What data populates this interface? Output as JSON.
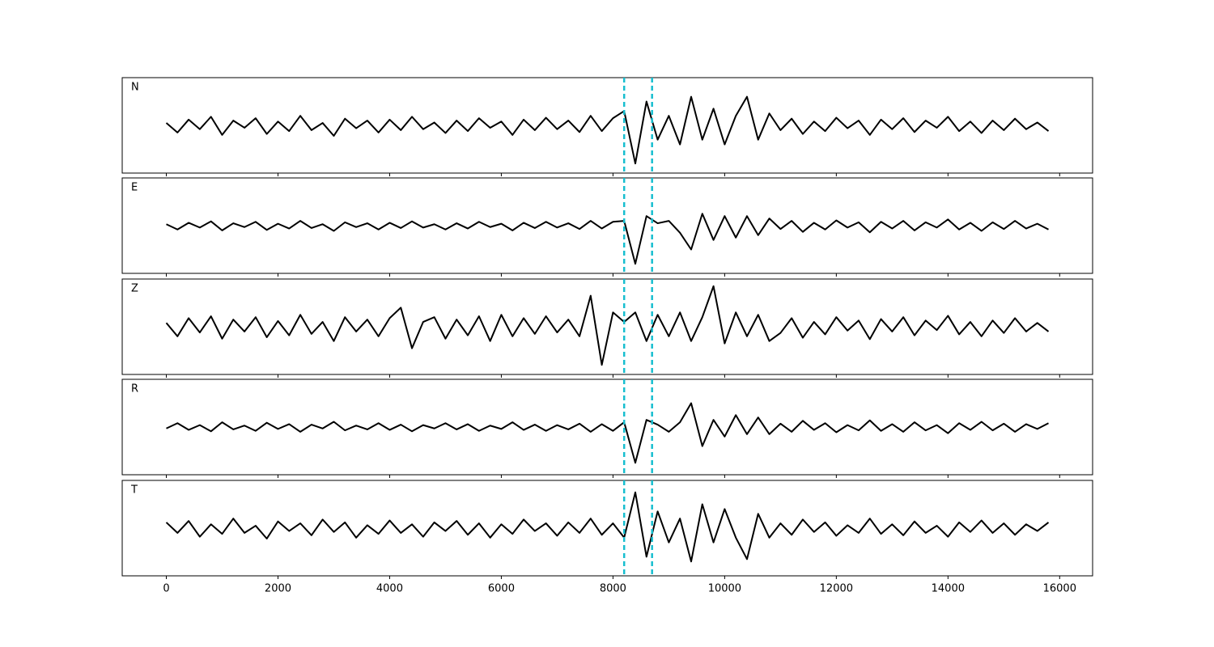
{
  "chart_data": {
    "type": "line",
    "subplots": true,
    "x": [
      0,
      200,
      400,
      600,
      800,
      1000,
      1200,
      1400,
      1600,
      1800,
      2000,
      2200,
      2400,
      2600,
      2800,
      3000,
      3200,
      3400,
      3600,
      3800,
      4000,
      4200,
      4400,
      4600,
      4800,
      5000,
      5200,
      5400,
      5600,
      5800,
      6000,
      6200,
      6400,
      6600,
      6800,
      7000,
      7200,
      7400,
      7600,
      7800,
      8000,
      8200,
      8400,
      8600,
      8800,
      9000,
      9200,
      9400,
      9600,
      9800,
      10000,
      10200,
      10400,
      10600,
      10800,
      11000,
      11200,
      11400,
      11600,
      11800,
      12000,
      12200,
      12400,
      12600,
      12800,
      13000,
      13200,
      13400,
      13600,
      13800,
      14000,
      14200,
      14400,
      14600,
      14800,
      15000,
      15200,
      15400,
      15600,
      15800
    ],
    "xlim": [
      -790,
      16590
    ],
    "xticks": [
      0,
      2000,
      4000,
      6000,
      8000,
      10000,
      12000,
      14000,
      16000
    ],
    "ylim": [
      -1,
      1
    ],
    "vlines": [
      8200,
      8700
    ],
    "vline_color": "#17becf",
    "series": [
      {
        "name": "N",
        "color": "#000000",
        "values": [
          0.05,
          -0.15,
          0.12,
          -0.08,
          0.18,
          -0.2,
          0.1,
          -0.05,
          0.15,
          -0.18,
          0.08,
          -0.12,
          0.2,
          -0.1,
          0.05,
          -0.22,
          0.14,
          -0.06,
          0.1,
          -0.15,
          0.12,
          -0.1,
          0.18,
          -0.08,
          0.06,
          -0.16,
          0.1,
          -0.12,
          0.15,
          -0.05,
          0.08,
          -0.2,
          0.12,
          -0.1,
          0.16,
          -0.08,
          0.1,
          -0.14,
          0.2,
          -0.12,
          0.15,
          0.3,
          -0.8,
          0.5,
          -0.3,
          0.2,
          -0.4,
          0.6,
          -0.3,
          0.35,
          -0.4,
          0.2,
          0.6,
          -0.3,
          0.25,
          -0.1,
          0.14,
          -0.18,
          0.08,
          -0.12,
          0.16,
          -0.06,
          0.1,
          -0.2,
          0.12,
          -0.08,
          0.15,
          -0.14,
          0.1,
          -0.05,
          0.18,
          -0.12,
          0.08,
          -0.16,
          0.1,
          -0.1,
          0.14,
          -0.08,
          0.06,
          -0.12
        ]
      },
      {
        "name": "E",
        "color": "#000000",
        "values": [
          0.03,
          -0.08,
          0.06,
          -0.04,
          0.09,
          -0.1,
          0.05,
          -0.03,
          0.08,
          -0.09,
          0.04,
          -0.06,
          0.1,
          -0.05,
          0.03,
          -0.11,
          0.07,
          -0.03,
          0.05,
          -0.08,
          0.06,
          -0.05,
          0.09,
          -0.04,
          0.03,
          -0.08,
          0.05,
          -0.06,
          0.08,
          -0.03,
          0.04,
          -0.1,
          0.06,
          -0.05,
          0.08,
          -0.04,
          0.05,
          -0.07,
          0.1,
          -0.06,
          0.08,
          0.1,
          -0.8,
          0.2,
          0.05,
          0.1,
          -0.15,
          -0.5,
          0.25,
          -0.3,
          0.2,
          -0.25,
          0.2,
          -0.2,
          0.15,
          -0.07,
          0.1,
          -0.13,
          0.06,
          -0.08,
          0.11,
          -0.04,
          0.07,
          -0.14,
          0.08,
          -0.06,
          0.1,
          -0.1,
          0.07,
          -0.04,
          0.13,
          -0.08,
          0.06,
          -0.11,
          0.07,
          -0.07,
          0.1,
          -0.06,
          0.04,
          -0.08
        ]
      },
      {
        "name": "Z",
        "color": "#000000",
        "values": [
          0.08,
          -0.2,
          0.18,
          -0.12,
          0.22,
          -0.25,
          0.15,
          -0.1,
          0.2,
          -0.22,
          0.12,
          -0.18,
          0.25,
          -0.15,
          0.1,
          -0.3,
          0.2,
          -0.1,
          0.15,
          -0.2,
          0.18,
          0.4,
          -0.45,
          0.1,
          0.2,
          -0.25,
          0.15,
          -0.18,
          0.22,
          -0.3,
          0.25,
          -0.2,
          0.18,
          -0.15,
          0.22,
          -0.12,
          0.15,
          -0.2,
          0.65,
          -0.8,
          0.3,
          0.1,
          0.3,
          -0.3,
          0.25,
          -0.2,
          0.3,
          -0.3,
          0.2,
          0.85,
          -0.35,
          0.3,
          -0.2,
          0.25,
          -0.3,
          -0.13,
          0.18,
          -0.23,
          0.1,
          -0.16,
          0.2,
          -0.08,
          0.13,
          -0.26,
          0.16,
          -0.1,
          0.2,
          -0.18,
          0.13,
          -0.07,
          0.23,
          -0.16,
          0.1,
          -0.2,
          0.13,
          -0.13,
          0.18,
          -0.1,
          0.08,
          -0.1
        ]
      },
      {
        "name": "R",
        "color": "#000000",
        "values": [
          -0.03,
          0.08,
          -0.06,
          0.04,
          -0.09,
          0.1,
          -0.05,
          0.03,
          -0.08,
          0.09,
          -0.04,
          0.06,
          -0.1,
          0.05,
          -0.03,
          0.11,
          -0.07,
          0.03,
          -0.05,
          0.08,
          -0.06,
          0.05,
          -0.09,
          0.04,
          -0.03,
          0.08,
          -0.05,
          0.06,
          -0.08,
          0.03,
          -0.04,
          0.1,
          -0.06,
          0.05,
          -0.08,
          0.04,
          -0.05,
          0.07,
          -0.1,
          0.06,
          -0.08,
          0.1,
          -0.75,
          0.15,
          0.05,
          -0.1,
          0.1,
          0.5,
          -0.4,
          0.15,
          -0.2,
          0.25,
          -0.15,
          0.2,
          -0.15,
          0.07,
          -0.1,
          0.13,
          -0.06,
          0.08,
          -0.11,
          0.04,
          -0.07,
          0.14,
          -0.08,
          0.06,
          -0.1,
          0.1,
          -0.07,
          0.04,
          -0.13,
          0.08,
          -0.06,
          0.11,
          -0.07,
          0.07,
          -0.1,
          0.06,
          -0.04,
          0.08
        ]
      },
      {
        "name": "T",
        "color": "#000000",
        "values": [
          0.12,
          -0.1,
          0.15,
          -0.18,
          0.08,
          -0.12,
          0.2,
          -0.1,
          0.05,
          -0.22,
          0.14,
          -0.06,
          0.1,
          -0.15,
          0.18,
          -0.08,
          0.12,
          -0.2,
          0.06,
          -0.12,
          0.16,
          -0.1,
          0.08,
          -0.18,
          0.12,
          -0.06,
          0.15,
          -0.14,
          0.1,
          -0.2,
          0.08,
          -0.12,
          0.18,
          -0.06,
          0.1,
          -0.16,
          0.12,
          -0.1,
          0.2,
          -0.14,
          0.1,
          -0.2,
          0.75,
          -0.6,
          0.35,
          -0.3,
          0.2,
          -0.7,
          0.5,
          -0.3,
          0.4,
          -0.2,
          -0.65,
          0.3,
          -0.2,
          0.1,
          -0.14,
          0.18,
          -0.08,
          0.12,
          -0.16,
          0.06,
          -0.1,
          0.2,
          -0.12,
          0.08,
          -0.15,
          0.14,
          -0.1,
          0.05,
          -0.18,
          0.12,
          -0.08,
          0.16,
          -0.1,
          0.1,
          -0.14,
          0.08,
          -0.06,
          0.12
        ]
      }
    ]
  }
}
